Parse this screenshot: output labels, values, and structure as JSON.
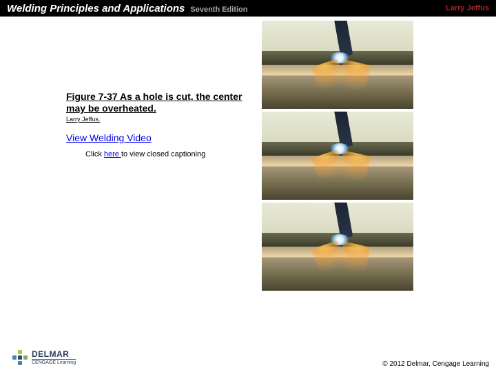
{
  "header": {
    "title": "Welding Principles and Applications",
    "edition": "Seventh Edition",
    "author": "Larry Jeffus"
  },
  "figure": {
    "caption": "Figure 7-37 As a hole is cut, the center may be overheated.",
    "credit": "Larry Jeffus."
  },
  "links": {
    "video": "View Welding Video",
    "cc_prefix": "Click ",
    "cc_here": "here ",
    "cc_suffix": "to view closed captioning"
  },
  "footer": {
    "logo_brand": "DELMAR",
    "logo_sub": "CENGAGE Learning",
    "copyright": "© 2012 Delmar, Cengage Learning"
  },
  "colors": {
    "header_bg": "#000000",
    "title_text": "#ffffff",
    "edition_text": "#aaaaaa",
    "author_text": "#b22222",
    "link_color": "#0000ee",
    "logo_color": "#2a3a5a"
  }
}
